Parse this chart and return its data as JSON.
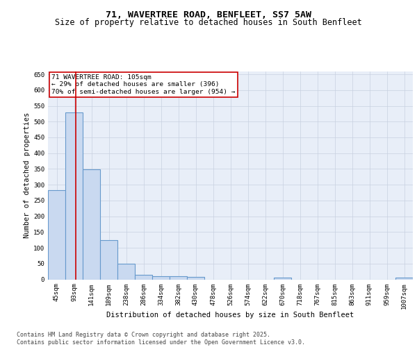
{
  "title": "71, WAVERTREE ROAD, BENFLEET, SS7 5AW",
  "subtitle": "Size of property relative to detached houses in South Benfleet",
  "xlabel": "Distribution of detached houses by size in South Benfleet",
  "ylabel": "Number of detached properties",
  "categories": [
    "45sqm",
    "93sqm",
    "141sqm",
    "189sqm",
    "238sqm",
    "286sqm",
    "334sqm",
    "382sqm",
    "430sqm",
    "478sqm",
    "526sqm",
    "574sqm",
    "622sqm",
    "670sqm",
    "718sqm",
    "767sqm",
    "815sqm",
    "863sqm",
    "911sqm",
    "959sqm",
    "1007sqm"
  ],
  "values": [
    283,
    530,
    348,
    125,
    50,
    15,
    10,
    10,
    7,
    0,
    0,
    0,
    0,
    5,
    0,
    0,
    0,
    0,
    0,
    0,
    5
  ],
  "bar_color": "#c9d9f0",
  "bar_edge_color": "#6699cc",
  "bar_edge_width": 0.8,
  "grid_color": "#c8d0e0",
  "plot_bg_color": "#e8eef8",
  "background_color": "#ffffff",
  "property_label": "71 WAVERTREE ROAD: 105sqm",
  "smaller_pct": "29% of detached houses are smaller (396)",
  "larger_pct": "70% of semi-detached houses are larger (954)",
  "vline_color": "#cc0000",
  "vline_x": 1.08,
  "annotation_box_color": "#cc0000",
  "ylim": [
    0,
    660
  ],
  "yticks": [
    0,
    50,
    100,
    150,
    200,
    250,
    300,
    350,
    400,
    450,
    500,
    550,
    600,
    650
  ],
  "footer": "Contains HM Land Registry data © Crown copyright and database right 2025.\nContains public sector information licensed under the Open Government Licence v3.0.",
  "title_fontsize": 9.5,
  "subtitle_fontsize": 8.5,
  "axis_label_fontsize": 7.5,
  "tick_fontsize": 6.5,
  "annot_fontsize": 6.8,
  "footer_fontsize": 6
}
